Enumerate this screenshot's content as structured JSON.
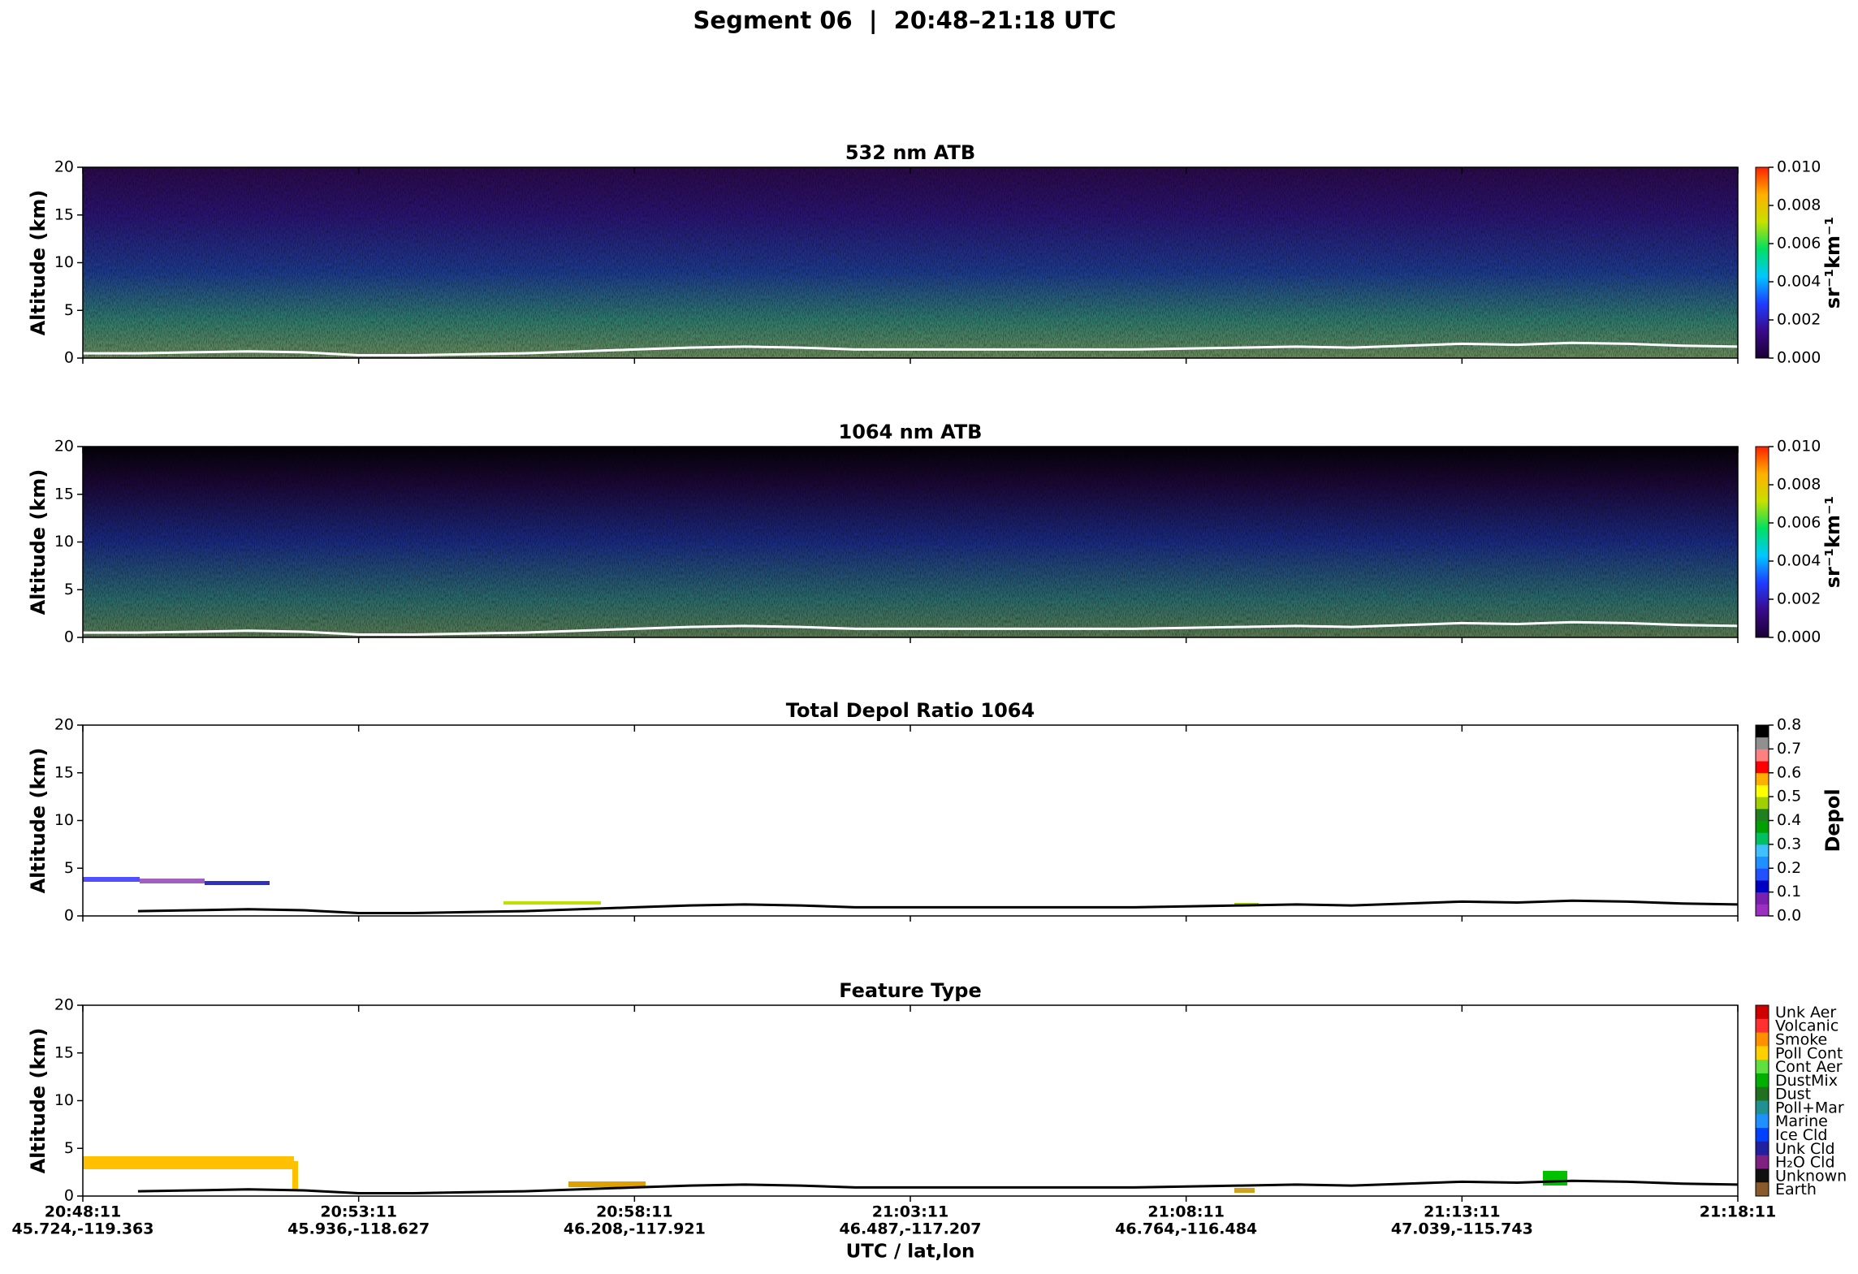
{
  "title": "Segment 06  |  20:48–21:18 UTC",
  "xlabel": "UTC / lat,lon",
  "xticks": [
    {
      "time": "20:48:11",
      "latlon": "45.724,-119.363"
    },
    {
      "time": "20:53:11",
      "latlon": "45.936,-118.627"
    },
    {
      "time": "20:58:11",
      "latlon": "46.208,-117.921"
    },
    {
      "time": "21:03:11",
      "latlon": "46.487,-117.207"
    },
    {
      "time": "21:08:11",
      "latlon": "46.764,-116.484"
    },
    {
      "time": "21:13:11",
      "latlon": "47.039,-115.743"
    },
    {
      "time": "21:18:11",
      "latlon": ""
    }
  ],
  "chart_data": [
    {
      "type": "heatmap",
      "title": "532 nm ATB",
      "ylabel": "Altitude (km)",
      "ylim": [
        0,
        20
      ],
      "yticks": [
        0,
        5,
        10,
        15,
        20
      ],
      "surface": {
        "color": "#ffffff",
        "values": [
          0.5,
          0.5,
          0.6,
          0.7,
          0.6,
          0.3,
          0.3,
          0.4,
          0.5,
          0.7,
          0.9,
          1.1,
          1.2,
          1.1,
          0.9,
          0.9,
          0.9,
          0.9,
          0.9,
          0.9,
          1.0,
          1.1,
          1.2,
          1.1,
          1.3,
          1.5,
          1.4,
          1.6,
          1.5,
          1.3,
          1.2
        ]
      },
      "colorbar": {
        "label": "sr⁻¹km⁻¹",
        "lim": [
          0,
          0.01
        ],
        "ticks": [
          {
            "value": 0,
            "label": "0.000"
          },
          {
            "value": 0.002,
            "label": "0.002"
          },
          {
            "value": 0.004,
            "label": "0.004"
          },
          {
            "value": 0.006,
            "label": "0.006"
          },
          {
            "value": 0.008,
            "label": "0.008"
          },
          {
            "value": 0.01,
            "label": "0.010"
          }
        ],
        "colors": [
          "#1a0033",
          "#3a0a8a",
          "#1f3cff",
          "#00c8ff",
          "#00e060",
          "#c8e000",
          "#ffb000",
          "#ff2000"
        ]
      }
    },
    {
      "type": "heatmap",
      "title": "1064 nm ATB",
      "ylabel": "Altitude (km)",
      "ylim": [
        0,
        20
      ],
      "yticks": [
        0,
        5,
        10,
        15,
        20
      ],
      "surface": {
        "color": "#ffffff",
        "values": [
          0.5,
          0.5,
          0.6,
          0.7,
          0.6,
          0.3,
          0.3,
          0.4,
          0.5,
          0.7,
          0.9,
          1.1,
          1.2,
          1.1,
          0.9,
          0.9,
          0.9,
          0.9,
          0.9,
          0.9,
          1.0,
          1.1,
          1.2,
          1.1,
          1.3,
          1.5,
          1.4,
          1.6,
          1.5,
          1.3,
          1.2
        ]
      },
      "colorbar": {
        "label": "sr⁻¹km⁻¹",
        "lim": [
          0,
          0.01
        ],
        "ticks": [
          {
            "value": 0,
            "label": "0.000"
          },
          {
            "value": 0.002,
            "label": "0.002"
          },
          {
            "value": 0.004,
            "label": "0.004"
          },
          {
            "value": 0.006,
            "label": "0.006"
          },
          {
            "value": 0.008,
            "label": "0.008"
          },
          {
            "value": 0.01,
            "label": "0.010"
          }
        ],
        "colors": [
          "#1a0033",
          "#3a0a8a",
          "#1f3cff",
          "#00c8ff",
          "#00e060",
          "#c8e000",
          "#ffb000",
          "#ff2000"
        ]
      }
    },
    {
      "type": "depol",
      "title": "Total Depol Ratio 1064",
      "ylabel": "Altitude (km)",
      "ylim": [
        0,
        20
      ],
      "yticks": [
        0,
        5,
        10,
        15,
        20
      ],
      "surface": {
        "color": "#000000",
        "values": [
          null,
          0.5,
          0.6,
          0.7,
          0.6,
          0.3,
          0.3,
          0.4,
          0.5,
          0.7,
          0.9,
          1.1,
          1.2,
          1.1,
          0.9,
          0.9,
          0.9,
          0.9,
          0.9,
          0.9,
          1.0,
          1.1,
          1.2,
          1.1,
          1.3,
          1.5,
          1.4,
          1.6,
          1.5,
          1.3,
          1.2
        ]
      },
      "colorbar": {
        "label": "Depol",
        "lim": [
          0,
          0.8
        ],
        "ticks": [
          {
            "value": 0,
            "label": "0.0"
          },
          0.1,
          0.2,
          0.3,
          0.4,
          0.5,
          0.6,
          0.7,
          0.8
        ],
        "segments": [
          "#9b30c0",
          "#7a20b0",
          "#0000c0",
          "#2050ff",
          "#1e90ff",
          "#40c0ff",
          "#00c060",
          "#00a000",
          "#208020",
          "#a0d000",
          "#ffff00",
          "#ffb000",
          "#ff0000",
          "#ff8080",
          "#909090",
          "#000000"
        ]
      }
    },
    {
      "type": "feature",
      "title": "Feature Type",
      "ylabel": "Altitude (km)",
      "ylim": [
        0,
        20
      ],
      "yticks": [
        0,
        5,
        10,
        15,
        20
      ],
      "surface": {
        "color": "#000000",
        "values": [
          null,
          0.5,
          0.6,
          0.7,
          0.6,
          0.3,
          0.3,
          0.4,
          0.5,
          0.7,
          0.9,
          1.1,
          1.2,
          1.1,
          0.9,
          0.9,
          0.9,
          0.9,
          0.9,
          0.9,
          1.0,
          1.1,
          1.2,
          1.1,
          1.3,
          1.5,
          1.4,
          1.6,
          1.5,
          1.3,
          1.2
        ]
      },
      "colorbar": {
        "categories": [
          "Unk Aer",
          "Volcanic",
          "Smoke",
          "Poll Cont",
          "Cont Aer",
          "DustMix",
          "Dust",
          "Poll+Mar",
          "Marine",
          "Ice Cld",
          "Unk Cld",
          "H₂O Cld",
          "Unknown",
          "Earth"
        ],
        "colors": [
          "#d00000",
          "#ff3030",
          "#ff9000",
          "#ffd000",
          "#60e040",
          "#00b000",
          "#207020",
          "#209090",
          "#1e90ff",
          "#0040ff",
          "#2020a0",
          "#802080",
          "#101010",
          "#8b5a2b"
        ]
      }
    }
  ]
}
